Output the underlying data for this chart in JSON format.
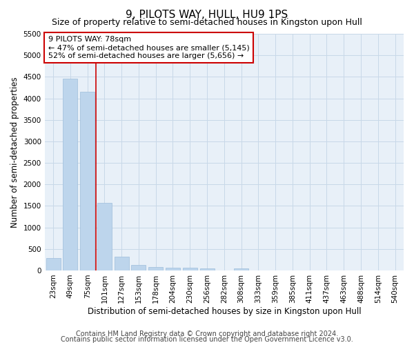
{
  "title": "9, PILOTS WAY, HULL, HU9 1PS",
  "subtitle": "Size of property relative to semi-detached houses in Kingston upon Hull",
  "xlabel": "Distribution of semi-detached houses by size in Kingston upon Hull",
  "ylabel": "Number of semi-detached properties",
  "footer1": "Contains HM Land Registry data © Crown copyright and database right 2024.",
  "footer2": "Contains public sector information licensed under the Open Government Licence v3.0.",
  "categories": [
    "23sqm",
    "49sqm",
    "75sqm",
    "101sqm",
    "127sqm",
    "153sqm",
    "178sqm",
    "204sqm",
    "230sqm",
    "256sqm",
    "282sqm",
    "308sqm",
    "333sqm",
    "359sqm",
    "385sqm",
    "411sqm",
    "437sqm",
    "463sqm",
    "488sqm",
    "514sqm",
    "540sqm"
  ],
  "values": [
    280,
    4450,
    4150,
    1570,
    320,
    125,
    80,
    65,
    65,
    55,
    0,
    50,
    0,
    0,
    0,
    0,
    0,
    0,
    0,
    0,
    0
  ],
  "bar_color": "#bdd5ec",
  "bar_edge_color": "#9dbddb",
  "vline_color": "#cc0000",
  "vline_x_index": 2,
  "annotation_line1": "9 PILOTS WAY: 78sqm",
  "annotation_line2": "← 47% of semi-detached houses are smaller (5,145)",
  "annotation_line3": "52% of semi-detached houses are larger (5,656) →",
  "annotation_box_color": "#cc0000",
  "annotation_box_bg": "#ffffff",
  "ylim": [
    0,
    5500
  ],
  "yticks": [
    0,
    500,
    1000,
    1500,
    2000,
    2500,
    3000,
    3500,
    4000,
    4500,
    5000,
    5500
  ],
  "grid_color": "#c8d8e8",
  "bg_color": "#e8f0f8",
  "title_fontsize": 11,
  "subtitle_fontsize": 9,
  "xlabel_fontsize": 8.5,
  "ylabel_fontsize": 8.5,
  "tick_fontsize": 7.5,
  "annotation_fontsize": 8,
  "footer_fontsize": 7
}
